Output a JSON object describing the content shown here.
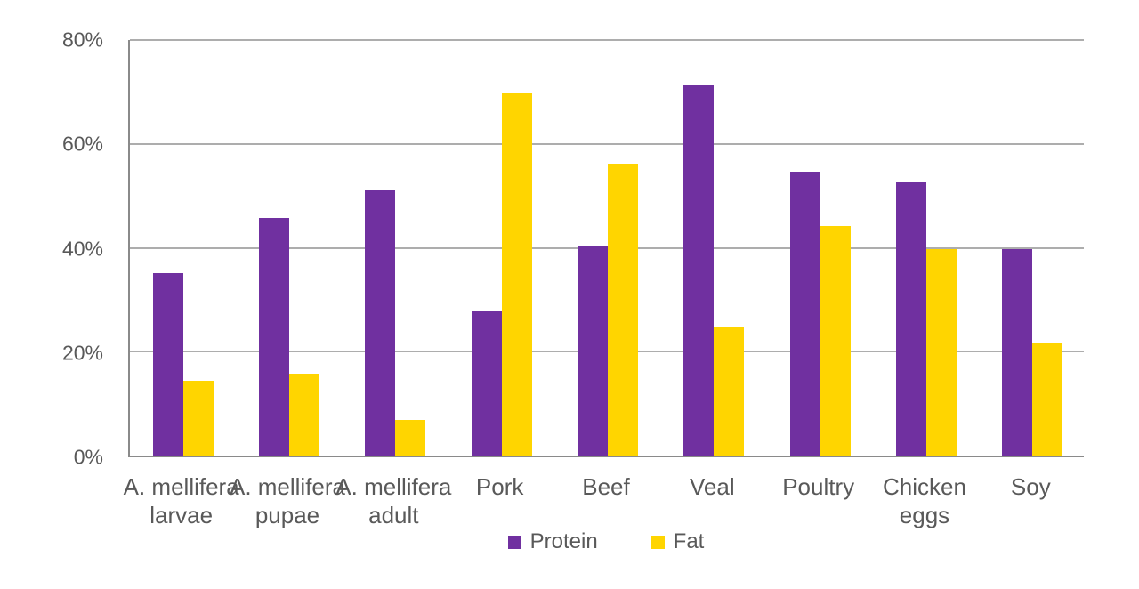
{
  "chart_data": {
    "type": "bar",
    "title": "",
    "xlabel": "",
    "ylabel": "",
    "categories": [
      "A. mellifera\nlarvae",
      "A. mellifera\npupae",
      "A. mellifera\nadult",
      "Pork",
      "Beef",
      "Veal",
      "Poultry",
      "Chicken\neggs",
      "Soy"
    ],
    "series": [
      {
        "name": "Protein",
        "color": "#7030A0",
        "values": [
          35.2,
          45.7,
          51.0,
          27.7,
          40.5,
          71.2,
          54.7,
          52.8,
          39.8
        ]
      },
      {
        "name": "Fat",
        "color": "#FFD500",
        "values": [
          14.4,
          15.8,
          6.9,
          69.8,
          56.2,
          24.7,
          44.2,
          39.8,
          21.7
        ]
      }
    ],
    "ylim": [
      0,
      80
    ],
    "yticks": [
      {
        "value": 0,
        "label": "0%"
      },
      {
        "value": 20,
        "label": "20%"
      },
      {
        "value": 40,
        "label": "40%"
      },
      {
        "value": 60,
        "label": "60%"
      },
      {
        "value": 80,
        "label": "80%"
      }
    ],
    "grid": "horizontal",
    "legend_position": "bottom-center"
  },
  "colors": {
    "text": "#595959",
    "gridline": "#ADADAD",
    "axis": "#8A8A8A",
    "background": "#FFFFFF",
    "protein": "#7030A0",
    "fat": "#FFD500"
  }
}
